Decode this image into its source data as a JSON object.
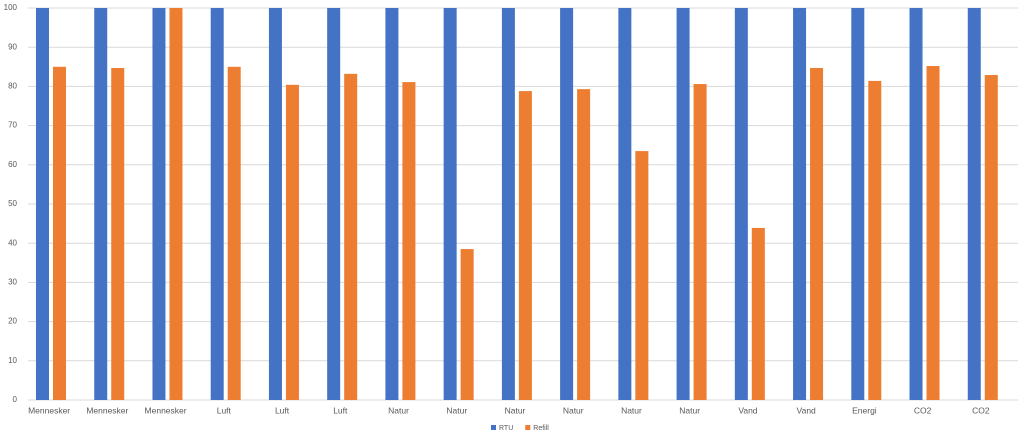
{
  "chart_data": {
    "type": "bar",
    "categories": [
      "Mennesker",
      "Mennesker",
      "Mennesker",
      "Luft",
      "Luft",
      "Luft",
      "Natur",
      "Natur",
      "Natur",
      "Natur",
      "Natur",
      "Natur",
      "Vand",
      "Vand",
      "Energi",
      "CO2",
      "CO2"
    ],
    "series": [
      {
        "name": "RTU",
        "color": "#4472c4",
        "values": [
          100,
          100,
          100,
          100,
          100,
          100,
          100,
          100,
          100,
          100,
          100,
          100,
          100,
          100,
          100,
          100,
          100
        ]
      },
      {
        "name": "Refill",
        "color": "#ed7d31",
        "values": [
          85,
          84.7,
          100,
          85,
          80.4,
          83.2,
          81.1,
          38.5,
          78.8,
          79.3,
          63.5,
          80.6,
          43.9,
          84.7,
          81.4,
          85.2,
          82.9
        ]
      }
    ],
    "ylim": [
      0,
      100
    ],
    "yticks": [
      0,
      10,
      20,
      30,
      40,
      50,
      60,
      70,
      80,
      90,
      100
    ],
    "grid": true,
    "legend": "bottom"
  }
}
